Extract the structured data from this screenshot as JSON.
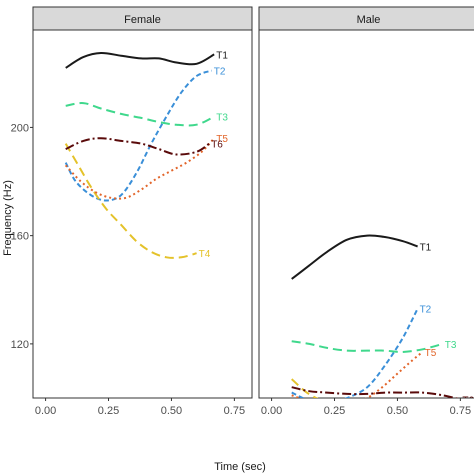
{
  "chart_data": {
    "type": "line",
    "xlabel": "Time (sec)",
    "ylabel": "Frequency (Hz)",
    "xlim": [
      -0.05,
      0.82
    ],
    "ylim": [
      100,
      236
    ],
    "x_ticks": [
      "0.00",
      "0.25",
      "0.50",
      "0.75"
    ],
    "y_ticks": [
      "120",
      "160",
      "200"
    ],
    "series_style": {
      "T1": {
        "color": "#1a1a1a",
        "dash": "none"
      },
      "T2": {
        "color": "#3a8fd8",
        "dash": "5,3"
      },
      "T3": {
        "color": "#3fd88c",
        "dash": "9,5"
      },
      "T4": {
        "color": "#e4c22a",
        "dash": "9,5"
      },
      "T5": {
        "color": "#e2652a",
        "dash": "2,3"
      },
      "T6": {
        "color": "#5a0a0a",
        "dash": "9,3,2,3"
      }
    },
    "panels": [
      {
        "name": "Female",
        "series": [
          {
            "name": "T1",
            "x": [
              0.08,
              0.15,
              0.22,
              0.3,
              0.38,
              0.45,
              0.52,
              0.6,
              0.67
            ],
            "y": [
              222,
              226,
              227.5,
              226.5,
              225.5,
              225.5,
              224,
              223.5,
              227
            ]
          },
          {
            "name": "T2",
            "x": [
              0.08,
              0.12,
              0.18,
              0.24,
              0.3,
              0.36,
              0.42,
              0.48,
              0.54,
              0.6,
              0.66
            ],
            "y": [
              187,
              180,
              175,
              173,
              175,
              183,
              194,
              204,
              213,
              219,
              221
            ]
          },
          {
            "name": "T3",
            "x": [
              0.08,
              0.15,
              0.22,
              0.3,
              0.38,
              0.45,
              0.52,
              0.6,
              0.67
            ],
            "y": [
              208,
              209,
              207,
              205,
              203.5,
              202,
              201,
              201,
              204
            ]
          },
          {
            "name": "T4",
            "x": [
              0.08,
              0.13,
              0.18,
              0.24,
              0.3,
              0.36,
              0.42,
              0.48,
              0.54,
              0.6
            ],
            "y": [
              194,
              186,
              178,
              170,
              164,
              158,
              154,
              152,
              152,
              153.5
            ]
          },
          {
            "name": "T5",
            "x": [
              0.08,
              0.14,
              0.2,
              0.26,
              0.32,
              0.38,
              0.44,
              0.5,
              0.56,
              0.62,
              0.67
            ],
            "y": [
              186,
              180,
              176,
              174,
              174,
              177,
              181,
              184,
              187,
              191,
              196
            ]
          },
          {
            "name": "T6",
            "x": [
              0.08,
              0.15,
              0.22,
              0.3,
              0.38,
              0.45,
              0.52,
              0.6,
              0.65
            ],
            "y": [
              192,
              195,
              196,
              195,
              194,
              192,
              190,
              191,
              194
            ]
          }
        ]
      },
      {
        "name": "Male",
        "series": [
          {
            "name": "T1",
            "x": [
              0.08,
              0.15,
              0.22,
              0.3,
              0.38,
              0.45,
              0.52,
              0.58
            ],
            "y": [
              144,
              149,
              154,
              158.5,
              160,
              159.5,
              158,
              156
            ]
          },
          {
            "name": "T2",
            "x": [
              0.08,
              0.15,
              0.22,
              0.3,
              0.38,
              0.45,
              0.52,
              0.58
            ],
            "y": [
              102,
              99,
              98,
              100,
              104,
              112,
              122,
              133
            ]
          },
          {
            "name": "T3",
            "x": [
              0.08,
              0.15,
              0.22,
              0.3,
              0.38,
              0.45,
              0.52,
              0.6,
              0.68
            ],
            "y": [
              121,
              120,
              118.5,
              117.5,
              117.5,
              117.5,
              117,
              118,
              120
            ]
          },
          {
            "name": "T4",
            "x": [
              0.08,
              0.14,
              0.2,
              0.26,
              0.32,
              0.38,
              0.44,
              0.5,
              0.57,
              0.63
            ],
            "y": [
              107,
              102,
              99,
              97,
              96,
              95,
              94.5,
              94.5,
              94.5,
              95
            ]
          },
          {
            "name": "T5",
            "x": [
              0.08,
              0.14,
              0.2,
              0.26,
              0.32,
              0.38,
              0.44,
              0.5,
              0.56,
              0.6
            ],
            "y": [
              101,
              99,
              98,
              98,
              98,
              100,
              104,
              109,
              114,
              117
            ]
          },
          {
            "name": "T6",
            "x": [
              0.08,
              0.15,
              0.22,
              0.3,
              0.38,
              0.45,
              0.52,
              0.6,
              0.68,
              0.75
            ],
            "y": [
              104,
              102.5,
              102,
              101.5,
              101.5,
              102,
              102,
              102,
              101,
              99.5
            ]
          }
        ]
      }
    ]
  }
}
